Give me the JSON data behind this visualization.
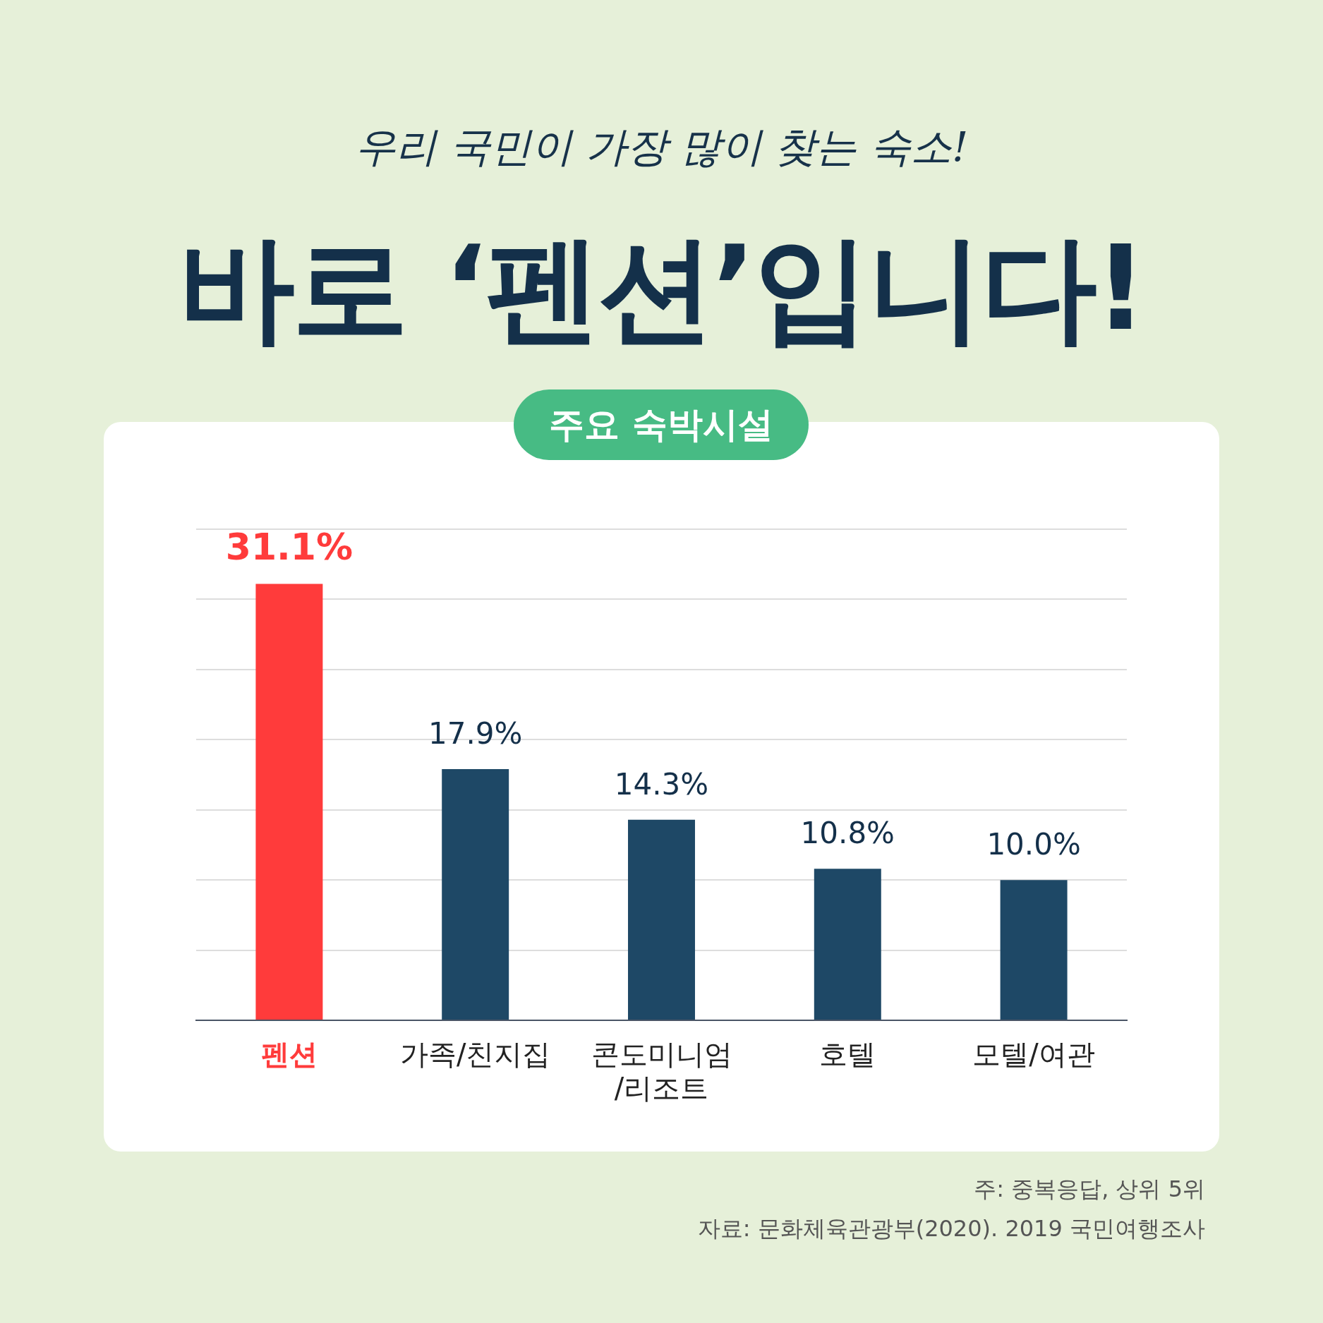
{
  "chart_data": {
    "type": "bar",
    "title": "바로 ‘펜션’입니다!",
    "subtitle": "우리 국민이 가장 많이 찾는 숙소!",
    "categories": [
      "펜션",
      "가족/친지집",
      "콘도미니엄/리조트",
      "호텔",
      "모텔/여관"
    ],
    "values": [
      31.1,
      17.9,
      14.3,
      10.8,
      10.0
    ],
    "value_labels": [
      "31.1%",
      "17.9%",
      "14.3%",
      "10.8%",
      "10.0%"
    ],
    "colors": [
      "#ff3b3b",
      "#1e4866",
      "#1e4866",
      "#1e4866",
      "#1e4866"
    ],
    "grid": "y",
    "tick_labels": "x",
    "legend": false,
    "annotations": [
      "주요 숙박시설",
      "주: 중복응답, 상위 5위",
      "자료: 문화체육관광부(2020). 2019 국민여행조사"
    ]
  }
}
